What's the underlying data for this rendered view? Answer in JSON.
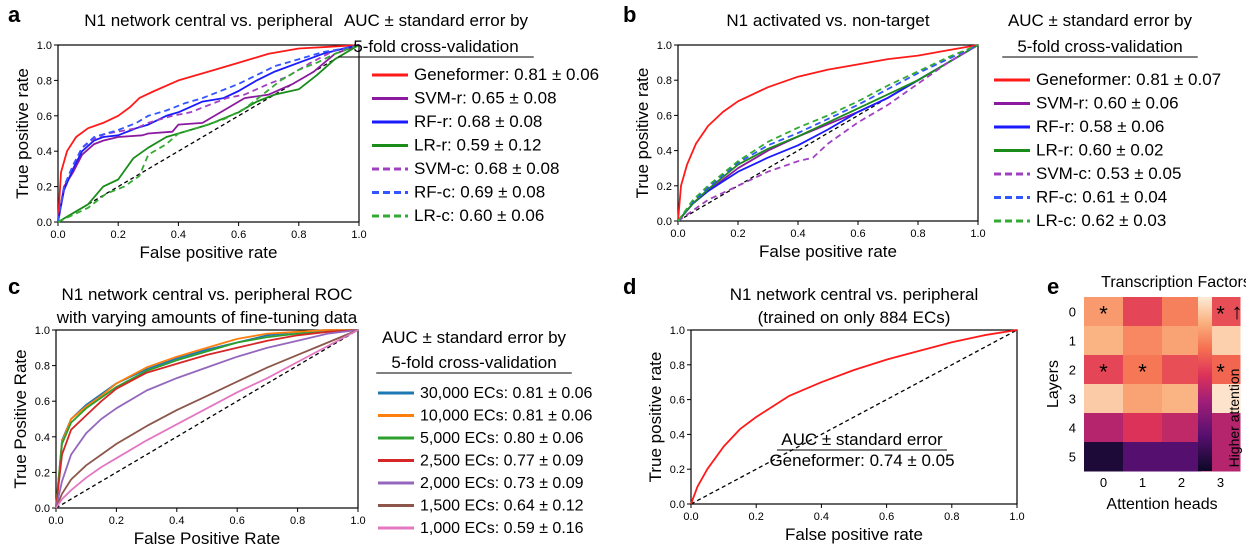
{
  "chart_data": [
    {
      "panel_label": "a",
      "type": "line",
      "title": "N1 network central vs. peripheral",
      "xlabel": "False positive rate",
      "ylabel": "True positive rate",
      "xlim": [
        0,
        1
      ],
      "ylim": [
        0,
        1
      ],
      "x_ticks": [
        "0.0",
        "0.2",
        "0.4",
        "0.6",
        "0.8",
        "1.0"
      ],
      "y_ticks": [
        "0.0",
        "0.2",
        "0.4",
        "0.6",
        "0.8",
        "1.0"
      ],
      "grid": false,
      "legend_title": [
        "AUC ± standard error by",
        "5-fold cross-validation"
      ],
      "legend_position": "right",
      "series": [
        {
          "name": "Geneformer: 0.81 ± 0.06",
          "color": "#ff1a1a",
          "dashed": false,
          "x": [
            0,
            0.01,
            0.03,
            0.06,
            0.1,
            0.15,
            0.2,
            0.24,
            0.27,
            0.32,
            0.4,
            0.5,
            0.6,
            0.7,
            0.8,
            0.9,
            1
          ],
          "y": [
            0,
            0.28,
            0.4,
            0.48,
            0.53,
            0.56,
            0.6,
            0.65,
            0.7,
            0.74,
            0.8,
            0.85,
            0.9,
            0.95,
            0.98,
            0.99,
            1
          ]
        },
        {
          "name": "SVM-r: 0.65 ± 0.08",
          "color": "#8b1aa0",
          "dashed": false,
          "x": [
            0,
            0.02,
            0.05,
            0.08,
            0.12,
            0.15,
            0.2,
            0.28,
            0.3,
            0.38,
            0.4,
            0.48,
            0.55,
            0.62,
            0.7,
            0.78,
            0.85,
            0.92,
            1
          ],
          "y": [
            0,
            0.2,
            0.28,
            0.38,
            0.44,
            0.46,
            0.48,
            0.49,
            0.5,
            0.51,
            0.55,
            0.56,
            0.63,
            0.7,
            0.72,
            0.78,
            0.85,
            0.95,
            1
          ]
        },
        {
          "name": "RF-r: 0.68 ± 0.08",
          "color": "#1a1aff",
          "dashed": false,
          "x": [
            0,
            0.02,
            0.05,
            0.08,
            0.12,
            0.15,
            0.2,
            0.26,
            0.3,
            0.36,
            0.4,
            0.48,
            0.55,
            0.6,
            0.66,
            0.72,
            0.8,
            0.88,
            0.95,
            1
          ],
          "y": [
            0,
            0.18,
            0.3,
            0.4,
            0.46,
            0.48,
            0.49,
            0.53,
            0.55,
            0.6,
            0.62,
            0.68,
            0.7,
            0.74,
            0.8,
            0.85,
            0.9,
            0.95,
            0.98,
            1
          ]
        },
        {
          "name": "LR-r: 0.59 ± 0.12",
          "color": "#1a8c1a",
          "dashed": false,
          "x": [
            0,
            0.05,
            0.1,
            0.15,
            0.2,
            0.25,
            0.3,
            0.36,
            0.4,
            0.5,
            0.6,
            0.66,
            0.72,
            0.8,
            0.86,
            0.92,
            1
          ],
          "y": [
            0,
            0.05,
            0.1,
            0.2,
            0.24,
            0.36,
            0.42,
            0.48,
            0.5,
            0.55,
            0.62,
            0.68,
            0.72,
            0.75,
            0.83,
            0.92,
            1
          ]
        },
        {
          "name": "SVM-c: 0.68 ± 0.08",
          "color": "#a040c0",
          "dashed": true,
          "x": [
            0,
            0.02,
            0.05,
            0.08,
            0.12,
            0.16,
            0.2,
            0.26,
            0.3,
            0.38,
            0.44,
            0.5,
            0.56,
            0.62,
            0.7,
            0.76,
            0.84,
            0.92,
            1
          ],
          "y": [
            0,
            0.2,
            0.32,
            0.42,
            0.47,
            0.5,
            0.51,
            0.53,
            0.56,
            0.6,
            0.62,
            0.66,
            0.7,
            0.72,
            0.78,
            0.82,
            0.9,
            0.97,
            1
          ]
        },
        {
          "name": "RF-c: 0.69 ± 0.08",
          "color": "#3355ff",
          "dashed": true,
          "x": [
            0,
            0.02,
            0.05,
            0.08,
            0.12,
            0.16,
            0.2,
            0.26,
            0.3,
            0.36,
            0.42,
            0.48,
            0.54,
            0.6,
            0.66,
            0.72,
            0.8,
            0.88,
            0.95,
            1
          ],
          "y": [
            0,
            0.2,
            0.32,
            0.42,
            0.48,
            0.5,
            0.52,
            0.56,
            0.6,
            0.63,
            0.67,
            0.7,
            0.74,
            0.78,
            0.83,
            0.88,
            0.92,
            0.96,
            0.98,
            1
          ]
        },
        {
          "name": "LR-c: 0.60 ± 0.06",
          "color": "#33aa33",
          "dashed": true,
          "x": [
            0,
            0.05,
            0.1,
            0.16,
            0.22,
            0.27,
            0.3,
            0.36,
            0.4,
            0.48,
            0.55,
            0.62,
            0.68,
            0.74,
            0.8,
            0.86,
            0.92,
            1
          ],
          "y": [
            0,
            0.04,
            0.08,
            0.16,
            0.2,
            0.26,
            0.38,
            0.44,
            0.5,
            0.54,
            0.58,
            0.64,
            0.72,
            0.8,
            0.86,
            0.9,
            0.95,
            1
          ]
        }
      ]
    },
    {
      "panel_label": "b",
      "type": "line",
      "title": "N1 activated vs. non-target",
      "xlabel": "False positive rate",
      "ylabel": "True positive rate",
      "xlim": [
        0,
        1
      ],
      "ylim": [
        0,
        1
      ],
      "x_ticks": [
        "0.0",
        "0.2",
        "0.4",
        "0.6",
        "0.8",
        "1.0"
      ],
      "y_ticks": [
        "0.0",
        "0.2",
        "0.4",
        "0.6",
        "0.8",
        "1.0"
      ],
      "grid": false,
      "legend_title": [
        "AUC ± standard error by",
        "5-fold cross-validation"
      ],
      "legend_position": "right",
      "series": [
        {
          "name": "Geneformer: 0.81 ± 0.07",
          "color": "#ff1a1a",
          "dashed": false,
          "x": [
            0,
            0.01,
            0.03,
            0.06,
            0.1,
            0.15,
            0.2,
            0.3,
            0.4,
            0.5,
            0.6,
            0.7,
            0.8,
            0.9,
            1
          ],
          "y": [
            0,
            0.2,
            0.32,
            0.44,
            0.54,
            0.62,
            0.68,
            0.76,
            0.82,
            0.86,
            0.89,
            0.92,
            0.94,
            0.97,
            1
          ]
        },
        {
          "name": "SVM-r: 0.60 ± 0.06",
          "color": "#8b1aa0",
          "dashed": false,
          "x": [
            0,
            0.05,
            0.1,
            0.2,
            0.3,
            0.4,
            0.5,
            0.6,
            0.7,
            0.8,
            0.9,
            1
          ],
          "y": [
            0,
            0.1,
            0.17,
            0.3,
            0.4,
            0.48,
            0.55,
            0.62,
            0.7,
            0.8,
            0.9,
            1
          ]
        },
        {
          "name": "RF-r: 0.58 ± 0.06",
          "color": "#1a1aff",
          "dashed": false,
          "x": [
            0,
            0.05,
            0.1,
            0.2,
            0.3,
            0.4,
            0.5,
            0.6,
            0.7,
            0.8,
            0.9,
            1
          ],
          "y": [
            0,
            0.1,
            0.17,
            0.28,
            0.36,
            0.43,
            0.52,
            0.62,
            0.7,
            0.8,
            0.9,
            1
          ]
        },
        {
          "name": "LR-r: 0.60 ± 0.02",
          "color": "#1a8c1a",
          "dashed": false,
          "x": [
            0,
            0.05,
            0.1,
            0.2,
            0.3,
            0.4,
            0.5,
            0.6,
            0.7,
            0.8,
            0.9,
            1
          ],
          "y": [
            0,
            0.1,
            0.18,
            0.32,
            0.41,
            0.48,
            0.56,
            0.64,
            0.72,
            0.8,
            0.9,
            1
          ]
        },
        {
          "name": "SVM-c: 0.53 ± 0.05",
          "color": "#a040c0",
          "dashed": true,
          "x": [
            0,
            0.05,
            0.1,
            0.2,
            0.3,
            0.4,
            0.45,
            0.5,
            0.6,
            0.7,
            0.8,
            0.9,
            1
          ],
          "y": [
            0,
            0.06,
            0.12,
            0.2,
            0.28,
            0.34,
            0.36,
            0.44,
            0.56,
            0.66,
            0.78,
            0.9,
            1
          ]
        },
        {
          "name": "RF-c: 0.61 ± 0.04",
          "color": "#3355ff",
          "dashed": true,
          "x": [
            0,
            0.05,
            0.1,
            0.2,
            0.3,
            0.4,
            0.5,
            0.6,
            0.7,
            0.8,
            0.9,
            1
          ],
          "y": [
            0,
            0.11,
            0.19,
            0.33,
            0.43,
            0.5,
            0.58,
            0.66,
            0.75,
            0.84,
            0.92,
            1
          ]
        },
        {
          "name": "LR-c: 0.62 ± 0.03",
          "color": "#33aa33",
          "dashed": true,
          "x": [
            0,
            0.05,
            0.1,
            0.2,
            0.3,
            0.4,
            0.5,
            0.6,
            0.7,
            0.8,
            0.9,
            1
          ],
          "y": [
            0,
            0.12,
            0.2,
            0.34,
            0.45,
            0.53,
            0.6,
            0.68,
            0.77,
            0.85,
            0.93,
            1
          ]
        }
      ]
    },
    {
      "panel_label": "c",
      "type": "line",
      "title": [
        "N1 network central vs. peripheral ROC",
        "with varying amounts of fine-tuning data"
      ],
      "xlabel": "False Positive Rate",
      "ylabel": "True Positive Rate",
      "xlim": [
        0,
        1
      ],
      "ylim": [
        0,
        1
      ],
      "x_ticks": [
        "0.0",
        "0.2",
        "0.4",
        "0.6",
        "0.8",
        "1.0"
      ],
      "y_ticks": [
        "0.0",
        "0.2",
        "0.4",
        "0.6",
        "0.8",
        "1.0"
      ],
      "grid": false,
      "legend_title": [
        "AUC ± standard error by",
        "5-fold cross-validation"
      ],
      "legend_position": "right",
      "series": [
        {
          "name": "30,000 ECs: 0.81 ± 0.06",
          "color": "#1f77b4",
          "dashed": false,
          "x": [
            0,
            0.02,
            0.05,
            0.1,
            0.15,
            0.2,
            0.3,
            0.4,
            0.5,
            0.6,
            0.7,
            0.8,
            0.9,
            1
          ],
          "y": [
            0,
            0.38,
            0.5,
            0.58,
            0.64,
            0.7,
            0.78,
            0.84,
            0.89,
            0.93,
            0.97,
            0.99,
            1,
            1
          ]
        },
        {
          "name": "10,000 ECs: 0.81 ± 0.06",
          "color": "#ff7f0e",
          "dashed": false,
          "x": [
            0,
            0.02,
            0.05,
            0.1,
            0.15,
            0.2,
            0.3,
            0.4,
            0.5,
            0.6,
            0.7,
            0.8,
            0.9,
            1
          ],
          "y": [
            0,
            0.37,
            0.5,
            0.57,
            0.63,
            0.7,
            0.79,
            0.85,
            0.9,
            0.95,
            0.98,
            0.99,
            1,
            1
          ]
        },
        {
          "name": "5,000 ECs: 0.80 ± 0.06",
          "color": "#2ca02c",
          "dashed": false,
          "x": [
            0,
            0.02,
            0.05,
            0.1,
            0.15,
            0.2,
            0.3,
            0.4,
            0.5,
            0.6,
            0.7,
            0.8,
            0.9,
            1
          ],
          "y": [
            0,
            0.36,
            0.48,
            0.56,
            0.62,
            0.68,
            0.77,
            0.83,
            0.88,
            0.93,
            0.96,
            0.98,
            0.99,
            1
          ]
        },
        {
          "name": "2,500 ECs: 0.77 ± 0.09",
          "color": "#d62728",
          "dashed": false,
          "x": [
            0,
            0.02,
            0.05,
            0.1,
            0.15,
            0.2,
            0.3,
            0.4,
            0.5,
            0.6,
            0.7,
            0.8,
            0.9,
            1
          ],
          "y": [
            0,
            0.3,
            0.44,
            0.52,
            0.6,
            0.67,
            0.76,
            0.81,
            0.86,
            0.9,
            0.94,
            0.97,
            0.99,
            1
          ]
        },
        {
          "name": "2,000 ECs: 0.73 ± 0.09",
          "color": "#9467bd",
          "dashed": false,
          "x": [
            0,
            0.02,
            0.05,
            0.1,
            0.15,
            0.2,
            0.3,
            0.4,
            0.5,
            0.6,
            0.7,
            0.8,
            0.9,
            1
          ],
          "y": [
            0,
            0.15,
            0.3,
            0.42,
            0.5,
            0.56,
            0.66,
            0.73,
            0.79,
            0.85,
            0.9,
            0.94,
            0.98,
            1
          ]
        },
        {
          "name": "1,500 ECs: 0.64 ± 0.12",
          "color": "#8c564b",
          "dashed": false,
          "x": [
            0,
            0.02,
            0.05,
            0.1,
            0.15,
            0.2,
            0.3,
            0.4,
            0.5,
            0.6,
            0.7,
            0.8,
            0.9,
            1
          ],
          "y": [
            0,
            0.08,
            0.16,
            0.24,
            0.3,
            0.36,
            0.46,
            0.55,
            0.63,
            0.71,
            0.79,
            0.86,
            0.93,
            1
          ]
        },
        {
          "name": "1,000 ECs: 0.59 ± 0.16",
          "color": "#e377c2",
          "dashed": false,
          "x": [
            0,
            0.02,
            0.05,
            0.1,
            0.15,
            0.2,
            0.3,
            0.4,
            0.5,
            0.6,
            0.7,
            0.8,
            0.9,
            1
          ],
          "y": [
            0,
            0.05,
            0.1,
            0.17,
            0.23,
            0.28,
            0.38,
            0.47,
            0.56,
            0.65,
            0.73,
            0.82,
            0.91,
            1
          ]
        }
      ]
    },
    {
      "panel_label": "d",
      "type": "line",
      "title": [
        "N1 network central vs. peripheral",
        "(trained on only 884 ECs)"
      ],
      "xlabel": "False positive rate",
      "ylabel": "True positive rate",
      "xlim": [
        0,
        1
      ],
      "ylim": [
        0,
        1
      ],
      "x_ticks": [
        "0.0",
        "0.2",
        "0.4",
        "0.6",
        "0.8",
        "1.0"
      ],
      "y_ticks": [
        "0.0",
        "0.2",
        "0.4",
        "0.6",
        "0.8",
        "1.0"
      ],
      "grid": false,
      "legend_title": [
        "AUC ± standard error"
      ],
      "legend_position": "bottom-right",
      "series": [
        {
          "name": "Geneformer: 0.74 ± 0.05",
          "color": "#ff1a1a",
          "dashed": false,
          "show_swatch": false,
          "x": [
            0,
            0.02,
            0.05,
            0.1,
            0.15,
            0.2,
            0.3,
            0.4,
            0.5,
            0.6,
            0.7,
            0.8,
            0.9,
            1
          ],
          "y": [
            0,
            0.1,
            0.2,
            0.33,
            0.43,
            0.5,
            0.62,
            0.7,
            0.77,
            0.83,
            0.88,
            0.93,
            0.97,
            1
          ]
        }
      ]
    },
    {
      "panel_label": "e",
      "type": "heatmap",
      "title": "Transcription Factors",
      "xlabel": "Attention heads",
      "ylabel": "Layers",
      "x_ticks": [
        "0",
        "1",
        "2",
        "3"
      ],
      "y_ticks": [
        "0",
        "1",
        "2",
        "3",
        "4",
        "5"
      ],
      "colorbar_label": "Higher attention",
      "colorbar_arrow": "↑",
      "values": [
        [
          0.8,
          0.6,
          0.74,
          0.62
        ],
        [
          0.86,
          0.76,
          0.82,
          0.93
        ],
        [
          0.6,
          0.72,
          0.62,
          0.68
        ],
        [
          0.92,
          0.82,
          0.86,
          0.98
        ],
        [
          0.45,
          0.55,
          0.48,
          0.45
        ],
        [
          0.05,
          0.2,
          0.2,
          0.45
        ]
      ],
      "annotations": [
        {
          "row": 0,
          "col": 0,
          "text": "*"
        },
        {
          "row": 0,
          "col": 3,
          "text": "*"
        },
        {
          "row": 2,
          "col": 0,
          "text": "*"
        },
        {
          "row": 2,
          "col": 1,
          "text": "*"
        },
        {
          "row": 2,
          "col": 3,
          "text": "*"
        }
      ]
    }
  ]
}
